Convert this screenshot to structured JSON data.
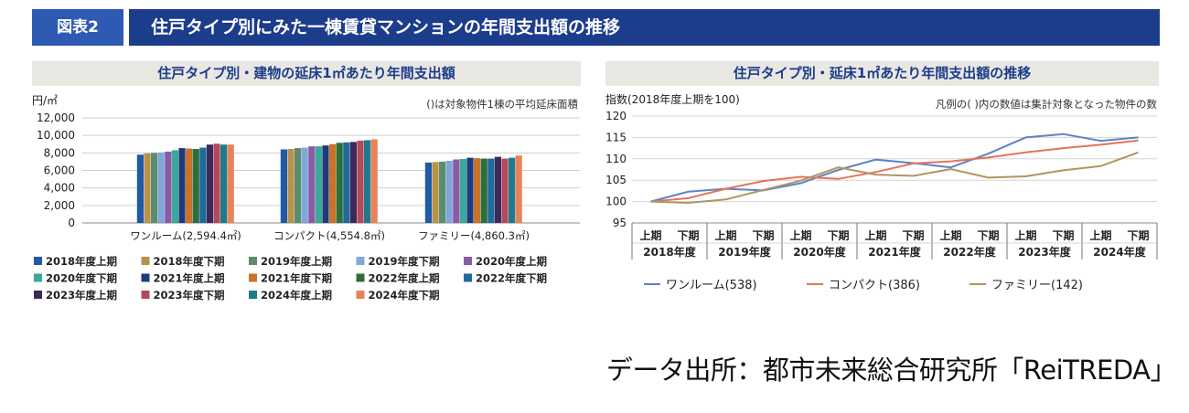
{
  "header": {
    "figure_label": "図表2",
    "title": "住戸タイプ別にみた一棟賃貸マンションの年間支出額の推移"
  },
  "chart_data": [
    {
      "type": "bar",
      "title": "住戸タイプ別・建物の延床1㎡あたり年間支出額",
      "ylabel": "円/㎡",
      "note": "()は対象物件1棟の平均延床面積",
      "ylim": [
        0,
        12000
      ],
      "yticks": [
        0,
        2000,
        4000,
        6000,
        8000,
        10000,
        12000
      ],
      "ytick_labels": [
        "0",
        "2,000",
        "4,000",
        "6,000",
        "8,000",
        "10,000",
        "12,000"
      ],
      "categories": [
        "ワンルーム(2,594.4㎡)",
        "コンパクト(4,554.8㎡)",
        "ファミリー(4,860.3㎡)"
      ],
      "series": [
        {
          "name": "2018年度上期",
          "color": "#1f5aa6",
          "values": [
            7800,
            8400,
            6900
          ]
        },
        {
          "name": "2018年度下期",
          "color": "#b8924a",
          "values": [
            7950,
            8450,
            6950
          ]
        },
        {
          "name": "2019年度上期",
          "color": "#5c8c6e",
          "values": [
            8000,
            8550,
            7000
          ]
        },
        {
          "name": "2019年度下期",
          "color": "#7fa8d8",
          "values": [
            8050,
            8600,
            7100
          ]
        },
        {
          "name": "2020年度上期",
          "color": "#8a5aa6",
          "values": [
            8150,
            8750,
            7250
          ]
        },
        {
          "name": "2020年度下期",
          "color": "#3aa89a",
          "values": [
            8300,
            8750,
            7300
          ]
        },
        {
          "name": "2021年度上期",
          "color": "#1e3a7a",
          "values": [
            8550,
            8850,
            7450
          ]
        },
        {
          "name": "2021年度下期",
          "color": "#c8722a",
          "values": [
            8500,
            9000,
            7400
          ]
        },
        {
          "name": "2022年度上期",
          "color": "#2e6e3a",
          "values": [
            8450,
            9150,
            7350
          ]
        },
        {
          "name": "2022年度下期",
          "color": "#1f6a9a",
          "values": [
            8600,
            9200,
            7350
          ]
        },
        {
          "name": "2023年度上期",
          "color": "#3a2a5a",
          "values": [
            8950,
            9250,
            7550
          ]
        },
        {
          "name": "2023年度下期",
          "color": "#b24a5a",
          "values": [
            9050,
            9400,
            7350
          ]
        },
        {
          "name": "2024年度上期",
          "color": "#1f7a8c",
          "values": [
            8950,
            9450,
            7450
          ]
        },
        {
          "name": "2024年度下期",
          "color": "#e8825a",
          "values": [
            8950,
            9550,
            7700
          ]
        }
      ]
    },
    {
      "type": "line",
      "title": "住戸タイプ別・延床1㎡あたり年間支出額の推移",
      "ylabel": "指数(2018年度上期を100)",
      "note": "凡例の( )内の数値は集計対象となった物件の数",
      "ylim": [
        95,
        120
      ],
      "yticks": [
        95,
        100,
        105,
        110,
        115,
        120
      ],
      "x": [
        "上期",
        "下期",
        "上期",
        "下期",
        "上期",
        "下期",
        "上期",
        "下期",
        "上期",
        "下期",
        "上期",
        "下期",
        "上期",
        "下期"
      ],
      "years": [
        "2018年度",
        "2019年度",
        "2020年度",
        "2021年度",
        "2022年度",
        "2023年度",
        "2024年度"
      ],
      "series": [
        {
          "name": "ワンルーム(538)",
          "color": "#5b84c4",
          "values": [
            100,
            102.3,
            103.0,
            102.6,
            104.3,
            107.4,
            109.8,
            109.0,
            108.0,
            111.2,
            115.0,
            115.8,
            114.2,
            115.0
          ]
        },
        {
          "name": "コンパクト(386)",
          "color": "#e6735a",
          "values": [
            100,
            100.8,
            103.0,
            104.8,
            105.8,
            105.3,
            106.9,
            108.9,
            109.4,
            110.3,
            111.5,
            112.5,
            113.3,
            114.3
          ]
        },
        {
          "name": "ファミリー(142)",
          "color": "#b39460",
          "values": [
            100,
            99.7,
            100.5,
            102.7,
            104.9,
            108.0,
            106.3,
            106.0,
            107.6,
            105.6,
            105.9,
            107.3,
            108.3,
            111.5
          ]
        }
      ]
    }
  ],
  "source": "データ出所：都市未来総合研究所「ReiTREDA」"
}
